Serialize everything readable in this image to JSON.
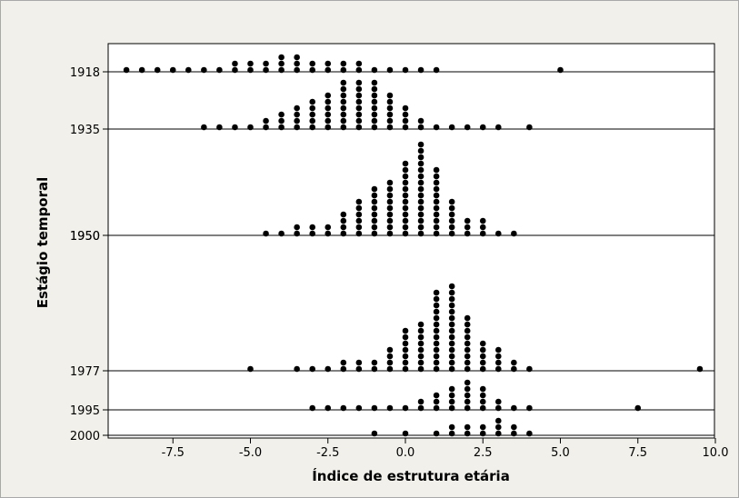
{
  "chart_data": {
    "type": "scatter",
    "subtype": "stacked dotplot",
    "title": "",
    "xlabel": "Índice de estrutura etária",
    "ylabel": "Estágio temporal",
    "xlim": [
      -9.5,
      10.3
    ],
    "x_ticks": [
      -7.5,
      -5.0,
      -2.5,
      0.0,
      2.5,
      5.0,
      7.5,
      10.0
    ],
    "x_tick_labels": [
      "-7.5",
      "-5.0",
      "-2.5",
      "0.0",
      "2.5",
      "5.0",
      "7.5",
      "10.0"
    ],
    "bin_width": 0.5,
    "grid": false,
    "legend": "none",
    "marker_color": "#000000",
    "background_color": "#ffffff",
    "frame_color": "#f1f0ea",
    "panels": [
      {
        "label": "1918",
        "stacks": [
          [
            -9,
            1
          ],
          [
            -8.5,
            1
          ],
          [
            -8,
            1
          ],
          [
            -7.5,
            1
          ],
          [
            -7,
            1
          ],
          [
            -6.5,
            1
          ],
          [
            -6,
            1
          ],
          [
            -5.5,
            2
          ],
          [
            -5,
            2
          ],
          [
            -4.5,
            2
          ],
          [
            -4,
            3
          ],
          [
            -3.5,
            3
          ],
          [
            -3,
            2
          ],
          [
            -2.5,
            2
          ],
          [
            -2,
            2
          ],
          [
            -1.5,
            2
          ],
          [
            -1,
            1
          ],
          [
            -0.5,
            1
          ],
          [
            0,
            1
          ],
          [
            0.5,
            1
          ],
          [
            1,
            1
          ],
          [
            5,
            1
          ]
        ]
      },
      {
        "label": "1935",
        "stacks": [
          [
            -6.5,
            1
          ],
          [
            -6,
            1
          ],
          [
            -5.5,
            1
          ],
          [
            -5,
            1
          ],
          [
            -4.5,
            2
          ],
          [
            -4,
            3
          ],
          [
            -3.5,
            4
          ],
          [
            -3,
            5
          ],
          [
            -2.5,
            6
          ],
          [
            -2,
            8
          ],
          [
            -1.5,
            8
          ],
          [
            -1,
            8
          ],
          [
            -0.5,
            6
          ],
          [
            0,
            4
          ],
          [
            0.5,
            2
          ],
          [
            1,
            1
          ],
          [
            1.5,
            1
          ],
          [
            2,
            1
          ],
          [
            2.5,
            1
          ],
          [
            3,
            1
          ],
          [
            4,
            1
          ]
        ]
      },
      {
        "label": "1950",
        "stacks": [
          [
            -4.5,
            1
          ],
          [
            -4,
            1
          ],
          [
            -3.5,
            2
          ],
          [
            -3,
            2
          ],
          [
            -2.5,
            2
          ],
          [
            -2,
            4
          ],
          [
            -1.5,
            6
          ],
          [
            -1,
            8
          ],
          [
            -0.5,
            9
          ],
          [
            0,
            12
          ],
          [
            0.5,
            15
          ],
          [
            1,
            11
          ],
          [
            1.5,
            6
          ],
          [
            2,
            3
          ],
          [
            2.5,
            3
          ],
          [
            3,
            1
          ],
          [
            3.5,
            1
          ]
        ]
      },
      {
        "label": "1950",
        "stacks": []
      },
      {
        "label": "1977",
        "stacks": [
          [
            -5,
            1
          ],
          [
            -3.5,
            1
          ],
          [
            -3,
            1
          ],
          [
            -2.5,
            1
          ],
          [
            -2,
            2
          ],
          [
            -1.5,
            2
          ],
          [
            -1,
            2
          ],
          [
            -0.5,
            4
          ],
          [
            0,
            7
          ],
          [
            0.5,
            8
          ],
          [
            1,
            13
          ],
          [
            1.5,
            14
          ],
          [
            2,
            9
          ],
          [
            2.5,
            5
          ],
          [
            3,
            4
          ],
          [
            3.5,
            2
          ],
          [
            4,
            1
          ],
          [
            9.5,
            1
          ]
        ]
      },
      {
        "label": "1995",
        "stacks": [
          [
            -3,
            1
          ],
          [
            -2.5,
            1
          ],
          [
            -2,
            1
          ],
          [
            -1.5,
            1
          ],
          [
            -1,
            1
          ],
          [
            -0.5,
            1
          ],
          [
            0,
            1
          ],
          [
            0.5,
            2
          ],
          [
            1,
            3
          ],
          [
            1.5,
            4
          ],
          [
            2,
            5
          ],
          [
            2.5,
            4
          ],
          [
            3,
            2
          ],
          [
            3.5,
            1
          ],
          [
            4,
            1
          ],
          [
            7.5,
            1
          ]
        ]
      },
      {
        "label": "2000",
        "stacks": [
          [
            -1,
            1
          ],
          [
            0,
            1
          ],
          [
            1,
            1
          ],
          [
            1.5,
            2
          ],
          [
            2,
            2
          ],
          [
            2.5,
            2
          ],
          [
            3,
            3
          ],
          [
            3.5,
            2
          ],
          [
            4,
            1
          ]
        ]
      }
    ]
  }
}
